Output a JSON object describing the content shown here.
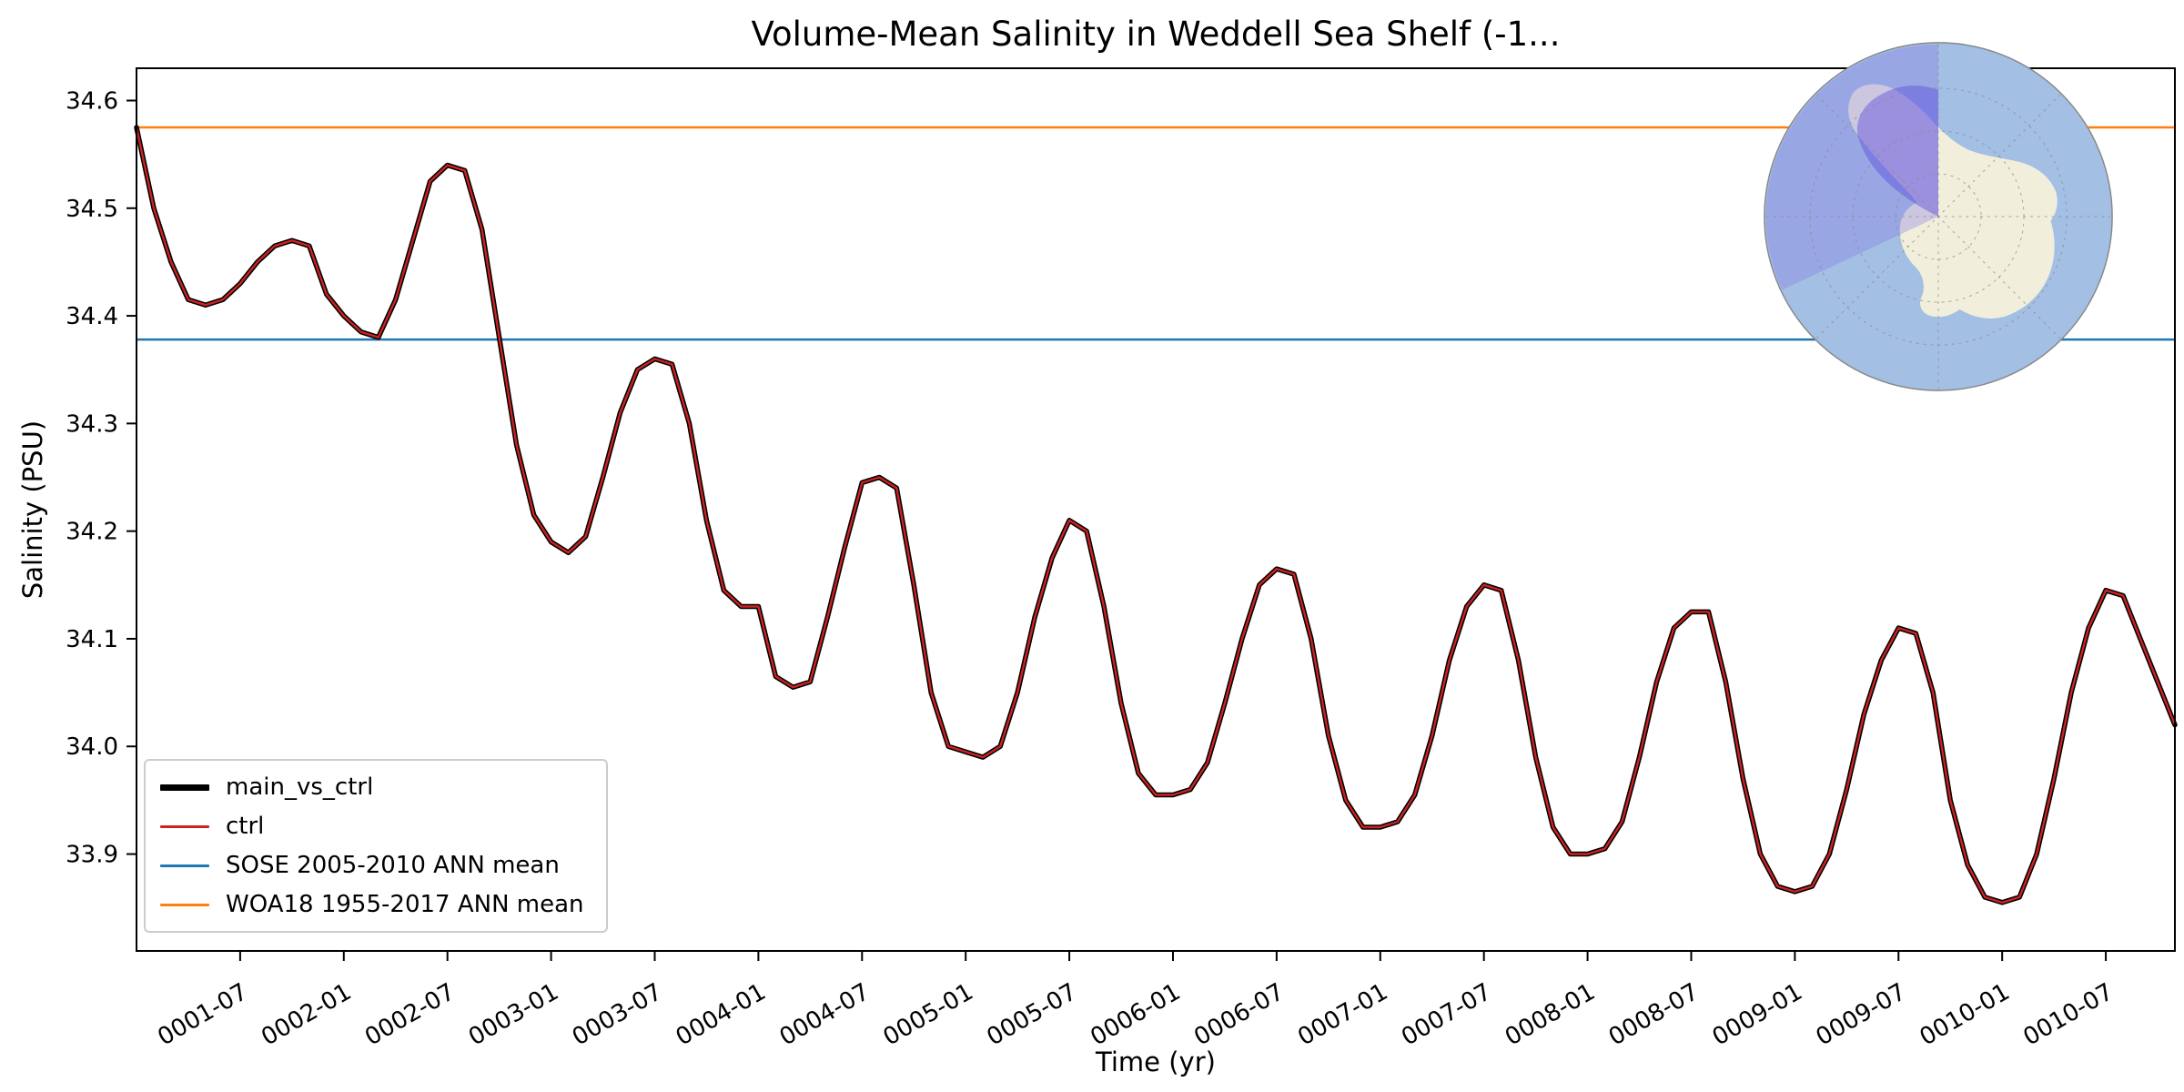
{
  "chart_data": {
    "type": "line",
    "title": "Volume-Mean Salinity in Weddell Sea Shelf (-1...",
    "xlabel": "Time (yr)",
    "ylabel": "Salinity (PSU)",
    "ylim": [
      33.81,
      34.63
    ],
    "yticks": [
      33.9,
      34.0,
      34.1,
      34.2,
      34.3,
      34.4,
      34.5,
      34.6
    ],
    "x_start": "0001-01",
    "x_end": "0010-11",
    "xtick_labels": [
      "0001-07",
      "0002-01",
      "0002-07",
      "0003-01",
      "0003-07",
      "0004-01",
      "0004-07",
      "0005-01",
      "0005-07",
      "0006-01",
      "0006-07",
      "0007-01",
      "0007-07",
      "0008-01",
      "0008-07",
      "0009-01",
      "0009-07",
      "0010-01",
      "0010-07"
    ],
    "xtick_indices": [
      6,
      12,
      18,
      24,
      30,
      36,
      42,
      48,
      54,
      60,
      66,
      72,
      78,
      84,
      90,
      96,
      102,
      108,
      114
    ],
    "grid": false,
    "legend_position": "lower left",
    "series": [
      {
        "name": "main_vs_ctrl",
        "color": "#000000",
        "linewidth": 5.5,
        "values": [
          34.575,
          34.5,
          34.45,
          34.415,
          34.41,
          34.415,
          34.43,
          34.45,
          34.465,
          34.47,
          34.465,
          34.42,
          34.4,
          34.385,
          34.38,
          34.415,
          34.47,
          34.525,
          34.54,
          34.535,
          34.48,
          34.38,
          34.28,
          34.215,
          34.19,
          34.18,
          34.195,
          34.25,
          34.31,
          34.35,
          34.36,
          34.355,
          34.3,
          34.21,
          34.145,
          34.13,
          34.13,
          34.065,
          34.055,
          34.06,
          34.12,
          34.185,
          34.245,
          34.25,
          34.24,
          34.15,
          34.05,
          34.0,
          33.995,
          33.99,
          34.0,
          34.05,
          34.12,
          34.175,
          34.21,
          34.2,
          34.13,
          34.04,
          33.975,
          33.955,
          33.955,
          33.96,
          33.985,
          34.04,
          34.1,
          34.15,
          34.165,
          34.16,
          34.1,
          34.01,
          33.95,
          33.925,
          33.925,
          33.93,
          33.955,
          34.01,
          34.08,
          34.13,
          34.15,
          34.145,
          34.08,
          33.99,
          33.925,
          33.9,
          33.9,
          33.905,
          33.93,
          33.99,
          34.06,
          34.11,
          34.125,
          34.125,
          34.06,
          33.97,
          33.9,
          33.87,
          33.865,
          33.87,
          33.9,
          33.96,
          34.03,
          34.08,
          34.11,
          34.105,
          34.05,
          33.95,
          33.89,
          33.86,
          33.855,
          33.86,
          33.9,
          33.97,
          34.05,
          34.11,
          34.145,
          34.14,
          34.1,
          34.06,
          34.02
        ]
      },
      {
        "name": "ctrl",
        "color": "#cc2222",
        "linewidth": 2.4,
        "values": [
          34.575,
          34.5,
          34.45,
          34.415,
          34.41,
          34.415,
          34.43,
          34.45,
          34.465,
          34.47,
          34.465,
          34.42,
          34.4,
          34.385,
          34.38,
          34.415,
          34.47,
          34.525,
          34.54,
          34.535,
          34.48,
          34.38,
          34.28,
          34.215,
          34.19,
          34.18,
          34.195,
          34.25,
          34.31,
          34.35,
          34.36,
          34.355,
          34.3,
          34.21,
          34.145,
          34.13,
          34.13,
          34.065,
          34.055,
          34.06,
          34.12,
          34.185,
          34.245,
          34.25,
          34.24,
          34.15,
          34.05,
          34.0,
          33.995,
          33.99,
          34.0,
          34.05,
          34.12,
          34.175,
          34.21,
          34.2,
          34.13,
          34.04,
          33.975,
          33.955,
          33.955,
          33.96,
          33.985,
          34.04,
          34.1,
          34.15,
          34.165,
          34.16,
          34.1,
          34.01,
          33.95,
          33.925,
          33.925,
          33.93,
          33.955,
          34.01,
          34.08,
          34.13,
          34.15,
          34.145,
          34.08,
          33.99,
          33.925,
          33.9,
          33.9,
          33.905,
          33.93,
          33.99,
          34.06,
          34.11,
          34.125,
          34.125,
          34.06,
          33.97,
          33.9,
          33.87,
          33.865,
          33.87,
          33.9,
          33.96,
          34.03,
          34.08,
          34.11,
          34.105,
          34.05,
          33.95,
          33.89,
          33.86,
          33.855,
          33.86,
          33.9,
          33.97,
          34.05,
          34.11,
          34.145,
          34.14,
          34.1,
          34.06,
          34.02
        ]
      }
    ],
    "ref_lines": [
      {
        "name": "SOSE 2005-2010 ANN mean",
        "value": 34.378,
        "color": "#1f77b4",
        "linewidth": 2.5
      },
      {
        "name": "WOA18 1955-2017 ANN mean",
        "value": 34.575,
        "color": "#ff7f0e",
        "linewidth": 2.5
      }
    ],
    "legend": [
      {
        "label": "main_vs_ctrl",
        "color": "#000000",
        "lw": 7
      },
      {
        "label": "ctrl",
        "color": "#cc2222",
        "lw": 3
      },
      {
        "label": "SOSE 2005-2010 ANN mean",
        "color": "#1f77b4",
        "lw": 3
      },
      {
        "label": "WOA18 1955-2017 ANN mean",
        "color": "#ff7f0e",
        "lw": 3
      }
    ]
  },
  "inset_map": {
    "description": "south-polar-view-of-antarctica",
    "highlighted_region": "Weddell Sea Shelf",
    "ocean_color": "#a3bfe3",
    "land_color": "#f1efdc",
    "region_wedge_color": "#8273e6",
    "shelf_patch_color": "#4b3bd6",
    "graticule_color": "#8a8a8a"
  }
}
